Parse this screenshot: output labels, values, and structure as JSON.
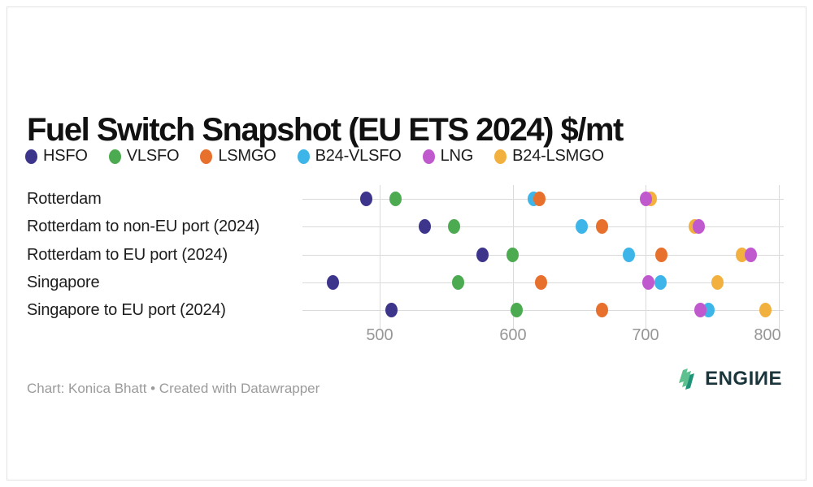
{
  "title": "Fuel Switch Snapshot (EU ETS 2024) $/mt",
  "footer": {
    "credit": "Chart: Konica Bhatt • Created with Datawrapper"
  },
  "logo": {
    "text": "ENGIИE"
  },
  "colors": {
    "grid": "#dadada",
    "axis_text": "#969696",
    "label_text": "#1d1d1d",
    "logo_green_light": "#5ec08f",
    "logo_green_dark": "#1f9377"
  },
  "chart_data": {
    "type": "scatter",
    "subtype": "horizontal-dot-plot",
    "title": "Fuel Switch Snapshot (EU ETS 2024) $/mt",
    "xlabel": "$/mt",
    "ylabel": "",
    "grid": true,
    "legend_position": "top",
    "x_ticks": [
      500,
      600,
      700,
      800
    ],
    "x_tick_labels": [
      "500",
      "600",
      "700",
      "800"
    ],
    "xlim": [
      480,
      805
    ],
    "categories": [
      "Rotterdam",
      "Rotterdam to non-EU port (2024)",
      "Rotterdam to EU port (2024)",
      "Singapore",
      "Singapore to EU port (2024)"
    ],
    "series": [
      {
        "name": "HSFO",
        "color": "#3d348b",
        "values": [
          490,
          534,
          577,
          465,
          509
        ]
      },
      {
        "name": "VLSFO",
        "color": "#4cab51",
        "values": [
          512,
          556,
          600,
          559,
          603
        ]
      },
      {
        "name": "LSMGO",
        "color": "#e8702d",
        "values": [
          620,
          667,
          712,
          621,
          667
        ]
      },
      {
        "name": "B24-VLSFO",
        "color": "#3eb5e8",
        "values": [
          616,
          652,
          687,
          711,
          747
        ]
      },
      {
        "name": "LNG",
        "color": "#c159ce",
        "values": [
          700,
          740,
          779,
          702,
          741
        ]
      },
      {
        "name": "B24-LSMGO",
        "color": "#f2b13f",
        "values": [
          704,
          737,
          772,
          754,
          790
        ]
      }
    ],
    "draw_order": [
      [
        "HSFO",
        "VLSFO",
        "B24-VLSFO",
        "LSMGO",
        "B24-LSMGO",
        "LNG"
      ],
      [
        "HSFO",
        "VLSFO",
        "B24-VLSFO",
        "LSMGO",
        "B24-LSMGO",
        "LNG"
      ],
      [
        "HSFO",
        "VLSFO",
        "B24-VLSFO",
        "LSMGO",
        "B24-LSMGO",
        "LNG"
      ],
      [
        "HSFO",
        "VLSFO",
        "LSMGO",
        "LNG",
        "B24-VLSFO",
        "B24-LSMGO"
      ],
      [
        "HSFO",
        "VLSFO",
        "LSMGO",
        "B24-VLSFO",
        "LNG",
        "B24-LSMGO"
      ]
    ]
  }
}
